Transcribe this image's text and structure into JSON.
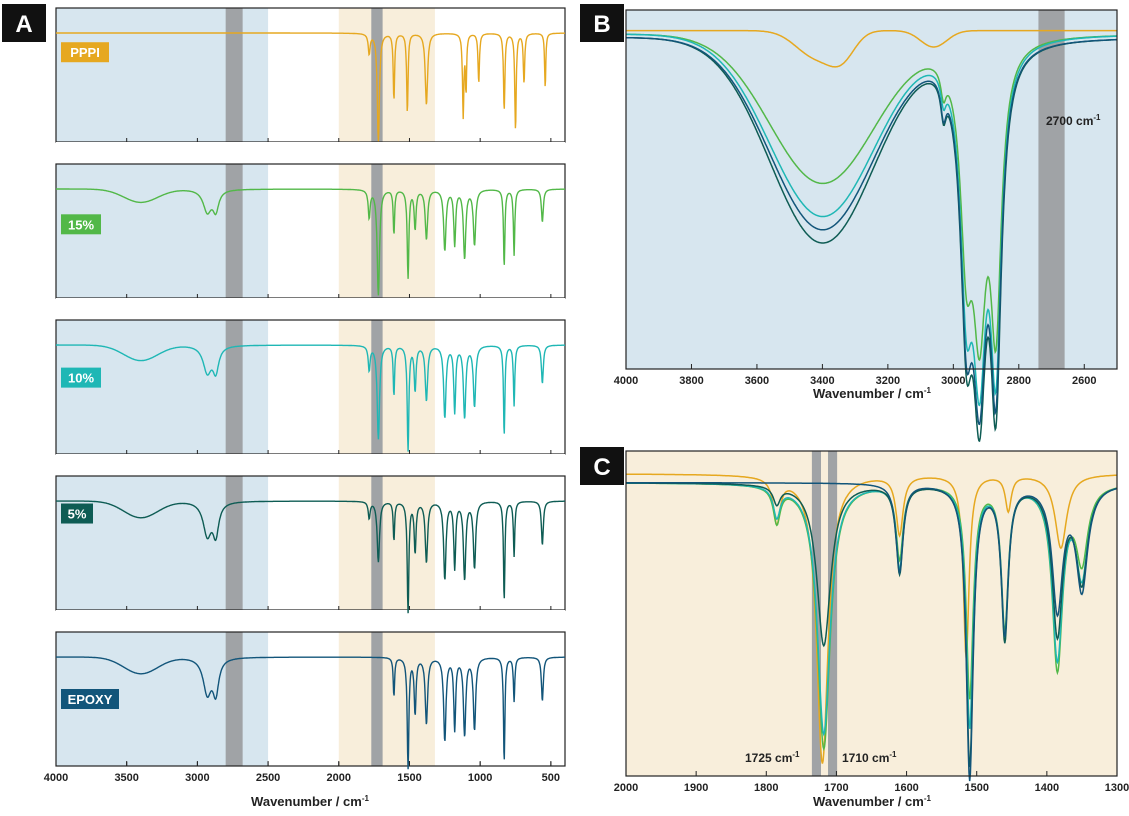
{
  "panels": {
    "a": "A",
    "b": "B",
    "c": "C"
  },
  "annotations": {
    "b_band": "2700 cm",
    "c_band1": "1725 cm",
    "c_band2": "1710 cm",
    "sup": "-1"
  },
  "colors": {
    "blue_region": "#d7e6ef",
    "beige_region": "#f8eedb",
    "gray_band": "#a0a3a6",
    "PPPI": "#e6a820",
    "15%": "#52b848",
    "10%": "#1fb7b5",
    "5%": "#0e5c54",
    "EPOXY": "#12557a"
  },
  "chart_data": [
    {
      "panel": "A",
      "type": "line",
      "layout": "stacked-subplots",
      "xlabel": "Wavenumber / cm",
      "xlabel_sup": "-1",
      "xlim": [
        4000,
        400
      ],
      "x_ticks": [
        4000,
        3500,
        3000,
        2500,
        2000,
        1500,
        1000,
        500
      ],
      "shaded_regions": [
        {
          "from": 4000,
          "to": 2500,
          "color": "blue"
        },
        {
          "from": 2000,
          "to": 1320,
          "color": "beige"
        },
        {
          "from": 2800,
          "to": 2680,
          "color": "gray"
        },
        {
          "from": 1770,
          "to": 1690,
          "color": "gray"
        }
      ],
      "series": [
        {
          "name": "PPPI",
          "baseline": 0.1,
          "broad": [],
          "peaks": [
            [
              1785,
              0.18,
              8
            ],
            [
              1720,
              0.98,
              9
            ],
            [
              1610,
              0.6,
              6
            ],
            [
              1515,
              0.72,
              6
            ],
            [
              1380,
              0.65,
              10
            ],
            [
              1120,
              0.75,
              6
            ],
            [
              1100,
              0.5,
              5
            ],
            [
              1010,
              0.45,
              6
            ],
            [
              830,
              0.7,
              6
            ],
            [
              750,
              0.88,
              6
            ],
            [
              690,
              0.45,
              6
            ],
            [
              540,
              0.5,
              5
            ]
          ]
        },
        {
          "name": "15%",
          "baseline": 0.1,
          "broad": [
            [
              3400,
              0.12,
              120
            ]
          ],
          "peaks": [
            [
              2930,
              0.2,
              35
            ],
            [
              2870,
              0.18,
              25
            ],
            [
              1785,
              0.25,
              8
            ],
            [
              1720,
              0.96,
              10
            ],
            [
              1610,
              0.4,
              6
            ],
            [
              1510,
              0.8,
              7
            ],
            [
              1460,
              0.35,
              8
            ],
            [
              1380,
              0.45,
              10
            ],
            [
              1250,
              0.55,
              10
            ],
            [
              1180,
              0.5,
              8
            ],
            [
              1110,
              0.62,
              10
            ],
            [
              1040,
              0.5,
              10
            ],
            [
              830,
              0.7,
              6
            ],
            [
              760,
              0.6,
              6
            ],
            [
              560,
              0.3,
              8
            ]
          ]
        },
        {
          "name": "10%",
          "baseline": 0.1,
          "broad": [
            [
              3400,
              0.14,
              120
            ]
          ],
          "peaks": [
            [
              2930,
              0.24,
              35
            ],
            [
              2870,
              0.22,
              25
            ],
            [
              1785,
              0.22,
              8
            ],
            [
              1720,
              0.85,
              10
            ],
            [
              1610,
              0.45,
              6
            ],
            [
              1510,
              0.95,
              7
            ],
            [
              1460,
              0.4,
              8
            ],
            [
              1380,
              0.5,
              10
            ],
            [
              1250,
              0.65,
              10
            ],
            [
              1180,
              0.6,
              8
            ],
            [
              1110,
              0.65,
              10
            ],
            [
              1040,
              0.55,
              10
            ],
            [
              830,
              0.82,
              6
            ],
            [
              760,
              0.55,
              6
            ],
            [
              560,
              0.35,
              8
            ]
          ]
        },
        {
          "name": "5%",
          "baseline": 0.1,
          "broad": [
            [
              3400,
              0.15,
              120
            ]
          ],
          "peaks": [
            [
              2930,
              0.3,
              35
            ],
            [
              2870,
              0.28,
              25
            ],
            [
              1785,
              0.15,
              8
            ],
            [
              1720,
              0.55,
              10
            ],
            [
              1610,
              0.35,
              6
            ],
            [
              1510,
              1.0,
              7
            ],
            [
              1460,
              0.45,
              8
            ],
            [
              1380,
              0.55,
              10
            ],
            [
              1250,
              0.7,
              10
            ],
            [
              1180,
              0.6,
              8
            ],
            [
              1110,
              0.7,
              10
            ],
            [
              1040,
              0.6,
              10
            ],
            [
              830,
              0.9,
              6
            ],
            [
              760,
              0.5,
              6
            ],
            [
              560,
              0.4,
              8
            ]
          ]
        },
        {
          "name": "EPOXY",
          "baseline": 0.1,
          "broad": [
            [
              3400,
              0.15,
              120
            ]
          ],
          "peaks": [
            [
              2930,
              0.32,
              35
            ],
            [
              2870,
              0.3,
              25
            ],
            [
              1610,
              0.35,
              6
            ],
            [
              1510,
              1.0,
              7
            ],
            [
              1460,
              0.5,
              8
            ],
            [
              1380,
              0.6,
              10
            ],
            [
              1250,
              0.75,
              10
            ],
            [
              1180,
              0.65,
              8
            ],
            [
              1110,
              0.7,
              10
            ],
            [
              1040,
              0.65,
              10
            ],
            [
              830,
              0.95,
              6
            ],
            [
              760,
              0.4,
              6
            ],
            [
              560,
              0.4,
              8
            ]
          ]
        }
      ]
    },
    {
      "panel": "B",
      "type": "line",
      "xlabel": "Wavenumber / cm",
      "xlabel_sup": "-1",
      "xlim": [
        4000,
        2500
      ],
      "x_ticks": [
        4000,
        3800,
        3600,
        3400,
        3200,
        3000,
        2800,
        2600
      ],
      "shaded_regions": [
        {
          "from": 4000,
          "to": 2500,
          "color": "blue"
        },
        {
          "from": 2740,
          "to": 2660,
          "color": "gray"
        }
      ],
      "series": [
        {
          "name": "PPPI",
          "baseline": 0.02,
          "broad": [
            [
              3420,
              0.08,
              60
            ],
            [
              3340,
              0.07,
              40
            ],
            [
              3060,
              0.05,
              40
            ]
          ],
          "peaks": []
        },
        {
          "name": "15%",
          "baseline": 0.03,
          "broad": [
            [
              3400,
              0.45,
              160
            ]
          ],
          "peaks": [
            [
              2960,
              0.55,
              22
            ],
            [
              2920,
              0.75,
              25
            ],
            [
              2870,
              0.78,
              20
            ],
            [
              3030,
              0.08,
              10
            ]
          ]
        },
        {
          "name": "10%",
          "baseline": 0.03,
          "broad": [
            [
              3400,
              0.55,
              160
            ]
          ],
          "peaks": [
            [
              2960,
              0.65,
              22
            ],
            [
              2920,
              0.85,
              25
            ],
            [
              2870,
              0.88,
              20
            ],
            [
              3030,
              0.08,
              10
            ]
          ]
        },
        {
          "name": "5%",
          "baseline": 0.04,
          "broad": [
            [
              3400,
              0.62,
              160
            ]
          ],
          "peaks": [
            [
              2960,
              0.72,
              22
            ],
            [
              2920,
              0.92,
              25
            ],
            [
              2870,
              0.96,
              20
            ],
            [
              3030,
              0.1,
              10
            ]
          ]
        },
        {
          "name": "EPOXY",
          "baseline": 0.04,
          "broad": [
            [
              3400,
              0.58,
              160
            ]
          ],
          "peaks": [
            [
              2960,
              0.7,
              22
            ],
            [
              2920,
              0.88,
              25
            ],
            [
              2870,
              0.92,
              20
            ],
            [
              3030,
              0.1,
              10
            ]
          ]
        }
      ]
    },
    {
      "panel": "C",
      "type": "line",
      "xlabel": "Wavenumber / cm",
      "xlabel_sup": "-1",
      "xlim": [
        2000,
        1300
      ],
      "x_ticks": [
        2000,
        1900,
        1800,
        1700,
        1600,
        1500,
        1400,
        1300
      ],
      "shaded_regions": [
        {
          "from": 2000,
          "to": 1300,
          "color": "beige"
        },
        {
          "from": 1735,
          "to": 1722,
          "color": "gray"
        },
        {
          "from": 1712,
          "to": 1699,
          "color": "gray"
        }
      ],
      "series": [
        {
          "name": "PPPI",
          "baseline": 0.05,
          "broad": [],
          "peaks": [
            [
              1785,
              0.15,
              6
            ],
            [
              1720,
              0.98,
              10
            ],
            [
              1610,
              0.2,
              6
            ],
            [
              1515,
              0.62,
              5
            ],
            [
              1455,
              0.12,
              5
            ],
            [
              1380,
              0.25,
              10
            ]
          ]
        },
        {
          "name": "15%",
          "baseline": 0.08,
          "broad": [],
          "peaks": [
            [
              1785,
              0.12,
              6
            ],
            [
              1718,
              0.9,
              11
            ],
            [
              1610,
              0.25,
              6
            ],
            [
              1510,
              0.72,
              6
            ],
            [
              1460,
              0.48,
              6
            ],
            [
              1385,
              0.62,
              9
            ],
            [
              1350,
              0.25,
              10
            ]
          ]
        },
        {
          "name": "10%",
          "baseline": 0.08,
          "broad": [],
          "peaks": [
            [
              1785,
              0.1,
              6
            ],
            [
              1718,
              0.85,
              11
            ],
            [
              1610,
              0.28,
              6
            ],
            [
              1510,
              0.82,
              6
            ],
            [
              1460,
              0.5,
              6
            ],
            [
              1385,
              0.58,
              9
            ],
            [
              1350,
              0.3,
              10
            ]
          ]
        },
        {
          "name": "5%",
          "baseline": 0.08,
          "broad": [],
          "peaks": [
            [
              1785,
              0.06,
              6
            ],
            [
              1718,
              0.55,
              12
            ],
            [
              1610,
              0.3,
              6
            ],
            [
              1510,
              0.95,
              6
            ],
            [
              1460,
              0.52,
              6
            ],
            [
              1385,
              0.5,
              9
            ],
            [
              1350,
              0.32,
              10
            ]
          ]
        },
        {
          "name": "EPOXY",
          "baseline": 0.08,
          "broad": [],
          "peaks": [
            [
              1610,
              0.3,
              6
            ],
            [
              1510,
              1.0,
              6
            ],
            [
              1460,
              0.5,
              6
            ],
            [
              1385,
              0.42,
              9
            ],
            [
              1350,
              0.35,
              10
            ]
          ]
        }
      ]
    }
  ]
}
